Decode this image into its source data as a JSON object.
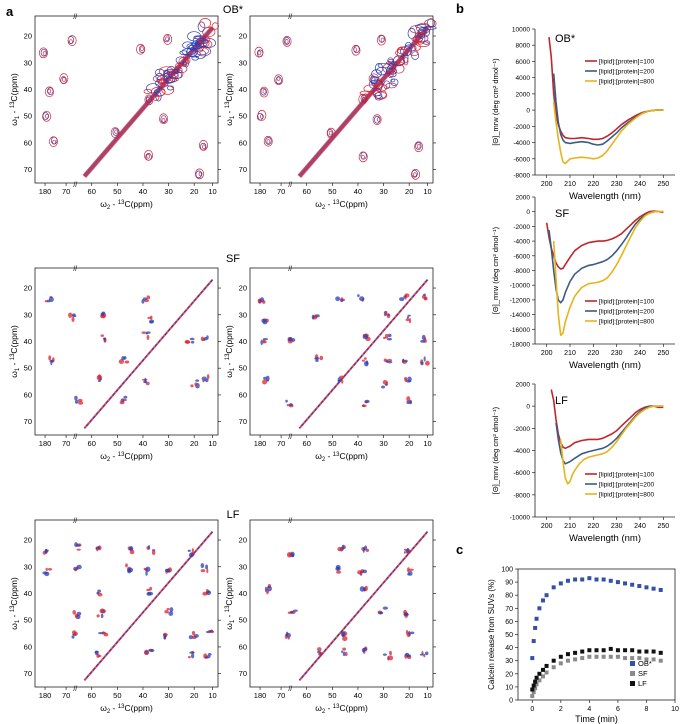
{
  "panel_labels": {
    "a": "a",
    "b": "b",
    "c": "c"
  },
  "nmr": {
    "x_label_main": "ω",
    "x_label_sub": "2",
    "x_label_tail": " - ",
    "x_label_sup": "13",
    "x_label_end": "C(ppm)",
    "y_label_main": "ω",
    "y_label_sub": "1",
    "y_label_tail": " - ",
    "y_label_sup": "13",
    "y_label_end": "C(ppm)",
    "x_ticks": [
      "180",
      "70",
      "60",
      "50",
      "40",
      "30",
      "20",
      "10"
    ],
    "y_ticks": [
      "20",
      "30",
      "40",
      "50",
      "60",
      "70"
    ],
    "break_mark": "//",
    "colors": {
      "red": "#e0202a",
      "blue": "#2a3fb5",
      "purple": "#7a4fb8"
    },
    "rows": [
      {
        "label": "OB*"
      },
      {
        "label": "SF"
      },
      {
        "label": "LF"
      }
    ]
  },
  "chart_data": [
    {
      "type": "line",
      "panel": "b-OB*",
      "title": "OB*",
      "xlabel": "Wavelength (nm)",
      "ylabel": "[Θ]_mrw (deg cm² dmol⁻¹)",
      "xlim": [
        195,
        255
      ],
      "ylim": [
        -8000,
        10000
      ],
      "x_ticks": [
        200,
        210,
        220,
        230,
        240,
        250
      ],
      "y_ticks": [
        -8000,
        -6000,
        -4000,
        -2000,
        0,
        2000,
        4000,
        6000,
        8000,
        10000
      ],
      "legend_position": "top-right",
      "series": [
        {
          "name": "[lipid]:[protein]=100",
          "color": "#c0262c",
          "x": [
            201,
            202,
            203,
            204,
            205,
            206,
            207,
            208,
            210,
            212,
            215,
            218,
            220,
            222,
            224,
            226,
            228,
            230,
            232,
            235,
            238,
            241,
            244,
            247,
            250
          ],
          "y": [
            9000,
            6500,
            2000,
            -500,
            -1800,
            -2600,
            -3100,
            -3400,
            -3500,
            -3500,
            -3400,
            -3500,
            -3600,
            -3600,
            -3500,
            -3200,
            -2800,
            -2300,
            -1800,
            -1200,
            -700,
            -300,
            -100,
            0,
            0
          ]
        },
        {
          "name": "[lipid]:[protein]=200",
          "color": "#3b5b86",
          "x": [
            203,
            204,
            205,
            206,
            207,
            208,
            210,
            212,
            215,
            218,
            220,
            222,
            224,
            226,
            228,
            230,
            232,
            235,
            238,
            241,
            244,
            247,
            250
          ],
          "y": [
            4500,
            1000,
            -1500,
            -3000,
            -3700,
            -4000,
            -4100,
            -4000,
            -3900,
            -4000,
            -4200,
            -4300,
            -4200,
            -3800,
            -3300,
            -2800,
            -2200,
            -1500,
            -900,
            -400,
            -100,
            0,
            0
          ]
        },
        {
          "name": "[lipid]:[protein]=800",
          "color": "#e8b319",
          "x": [
            203,
            204,
            205,
            206,
            207,
            208,
            209,
            210,
            212,
            215,
            218,
            220,
            222,
            224,
            226,
            228,
            230,
            232,
            235,
            238,
            241,
            244,
            247,
            250
          ],
          "y": [
            1000,
            -1500,
            -3500,
            -5200,
            -6400,
            -6600,
            -6300,
            -6000,
            -5900,
            -5800,
            -5900,
            -6000,
            -5900,
            -5600,
            -5000,
            -4200,
            -3400,
            -2600,
            -1700,
            -1000,
            -400,
            -100,
            0,
            0
          ]
        }
      ]
    },
    {
      "type": "line",
      "panel": "b-SF",
      "title": "SF",
      "xlabel": "Wavelength (nm)",
      "ylabel": "[Θ]_mrw (deg cm² dmol⁻¹)",
      "xlim": [
        195,
        255
      ],
      "ylim": [
        -18000,
        2000
      ],
      "x_ticks": [
        200,
        210,
        220,
        230,
        240,
        250
      ],
      "y_ticks": [
        -18000,
        -16000,
        -14000,
        -12000,
        -10000,
        -8000,
        -6000,
        -4000,
        -2000,
        0,
        2000
      ],
      "legend_position": "bottom-right",
      "series": [
        {
          "name": "[lipid]:[protein]=100",
          "color": "#c0262c",
          "x": [
            200,
            201,
            202,
            203,
            204,
            205,
            206,
            207,
            208,
            210,
            212,
            215,
            218,
            220,
            222,
            224,
            226,
            228,
            230,
            232,
            234,
            236,
            238,
            240,
            242,
            244,
            246,
            248,
            250
          ],
          "y": [
            -1500,
            -3500,
            -5000,
            -6000,
            -7000,
            -7500,
            -7800,
            -7700,
            -7200,
            -6200,
            -5300,
            -4600,
            -4200,
            -4100,
            -4000,
            -4000,
            -3900,
            -3700,
            -3400,
            -3000,
            -2400,
            -1800,
            -1200,
            -700,
            -300,
            0,
            100,
            0,
            -100
          ]
        },
        {
          "name": "[lipid]:[protein]=200",
          "color": "#3b5b86",
          "x": [
            201,
            202,
            203,
            204,
            205,
            206,
            207,
            208,
            210,
            212,
            215,
            218,
            220,
            222,
            224,
            226,
            228,
            230,
            232,
            234,
            236,
            238,
            240,
            242,
            244,
            246,
            248,
            250
          ],
          "y": [
            -2500,
            -5000,
            -8000,
            -10500,
            -12000,
            -12400,
            -12000,
            -11000,
            -9500,
            -8500,
            -7700,
            -7300,
            -7200,
            -7000,
            -6800,
            -6500,
            -6000,
            -5300,
            -4500,
            -3600,
            -2600,
            -1700,
            -1000,
            -500,
            -200,
            0,
            0,
            0
          ]
        },
        {
          "name": "[lipid]:[protein]=800",
          "color": "#e8b319",
          "x": [
            203,
            204,
            205,
            206,
            207,
            208,
            210,
            212,
            215,
            218,
            220,
            222,
            224,
            226,
            228,
            230,
            232,
            234,
            236,
            238,
            240,
            242,
            244,
            246,
            248,
            250
          ],
          "y": [
            -4000,
            -9000,
            -14000,
            -16800,
            -16500,
            -15000,
            -13000,
            -11500,
            -10300,
            -9800,
            -9700,
            -9600,
            -9400,
            -9000,
            -8200,
            -7200,
            -6000,
            -4700,
            -3400,
            -2200,
            -1300,
            -600,
            -200,
            0,
            0,
            0
          ]
        }
      ]
    },
    {
      "type": "line",
      "panel": "b-LF",
      "title": "LF",
      "xlabel": "Wavelength (nm)",
      "ylabel": "[Θ]_mrw (deg cm² dmol⁻¹)",
      "xlim": [
        195,
        255
      ],
      "ylim": [
        -10000,
        2000
      ],
      "x_ticks": [
        200,
        210,
        220,
        230,
        240,
        250
      ],
      "y_ticks": [
        -10000,
        -8000,
        -6000,
        -4000,
        -2000,
        0,
        2000
      ],
      "legend_position": "bottom-right",
      "series": [
        {
          "name": "[lipid]:[protein]=100",
          "color": "#c0262c",
          "x": [
            202,
            203,
            204,
            205,
            206,
            207,
            208,
            210,
            212,
            215,
            218,
            220,
            222,
            224,
            226,
            228,
            230,
            232,
            234,
            236,
            238,
            240,
            242,
            244,
            246,
            248,
            250
          ],
          "y": [
            1500,
            500,
            -1200,
            -2500,
            -3300,
            -3700,
            -3800,
            -3600,
            -3300,
            -3100,
            -3000,
            -3000,
            -3000,
            -2900,
            -2700,
            -2500,
            -2200,
            -1800,
            -1400,
            -1000,
            -600,
            -300,
            -100,
            0,
            0,
            -100,
            -100
          ]
        },
        {
          "name": "[lipid]:[protein]=200",
          "color": "#3b5b86",
          "x": [
            204,
            205,
            206,
            207,
            208,
            210,
            212,
            215,
            218,
            220,
            222,
            224,
            226,
            228,
            230,
            232,
            234,
            236,
            238,
            240,
            242,
            244,
            246,
            248,
            250
          ],
          "y": [
            -1500,
            -3000,
            -4200,
            -4900,
            -5200,
            -5000,
            -4700,
            -4300,
            -4100,
            -4000,
            -3900,
            -3800,
            -3600,
            -3300,
            -2900,
            -2400,
            -1900,
            -1400,
            -900,
            -500,
            -200,
            0,
            0,
            0,
            0
          ]
        },
        {
          "name": "[lipid]:[protein]=800",
          "color": "#e8b319",
          "x": [
            206,
            207,
            208,
            209,
            210,
            211,
            212,
            214,
            216,
            218,
            220,
            222,
            224,
            226,
            228,
            230,
            232,
            234,
            236,
            238,
            240,
            242,
            244,
            246,
            248,
            250
          ],
          "y": [
            -3000,
            -5000,
            -6500,
            -7000,
            -6800,
            -6200,
            -5800,
            -5200,
            -4800,
            -4600,
            -4500,
            -4400,
            -4300,
            -4100,
            -3700,
            -3200,
            -2600,
            -2000,
            -1500,
            -1000,
            -600,
            -300,
            -100,
            0,
            0,
            0
          ]
        }
      ]
    },
    {
      "type": "scatter",
      "panel": "c",
      "title": "",
      "xlabel": "Time (min)",
      "ylabel": "Calcein release from SUVs (%)",
      "xlim": [
        -1,
        10
      ],
      "ylim": [
        0,
        100
      ],
      "x_ticks": [
        0,
        2,
        4,
        6,
        8,
        10
      ],
      "y_ticks": [
        0,
        10,
        20,
        30,
        40,
        50,
        60,
        70,
        80,
        90,
        100
      ],
      "legend_position": "bottom-right",
      "series": [
        {
          "name": "OB*",
          "color": "#3350a8",
          "marker": "square",
          "x": [
            0,
            0.1,
            0.2,
            0.3,
            0.5,
            0.75,
            1,
            1.5,
            2,
            2.5,
            3,
            3.5,
            4,
            4.5,
            5,
            5.5,
            6,
            6.5,
            7,
            7.5,
            8,
            8.5,
            9
          ],
          "y": [
            32,
            45,
            55,
            62,
            70,
            76,
            80,
            86,
            89,
            91,
            92,
            92,
            93,
            92,
            92,
            91,
            90,
            89,
            88,
            87,
            86,
            85,
            84
          ]
        },
        {
          "name": "SF",
          "color": "#8a8a8a",
          "marker": "square",
          "x": [
            0,
            0.1,
            0.2,
            0.3,
            0.5,
            0.75,
            1,
            1.5,
            2,
            2.5,
            3,
            3.5,
            4,
            4.5,
            5,
            5.5,
            6,
            6.5,
            7,
            7.5,
            8,
            8.5,
            9
          ],
          "y": [
            3,
            6,
            9,
            12,
            15,
            18,
            21,
            25,
            28,
            30,
            31,
            32,
            33,
            33,
            33,
            33,
            33,
            32,
            32,
            32,
            31,
            31,
            30
          ]
        },
        {
          "name": "LF",
          "color": "#111111",
          "marker": "square",
          "x": [
            0,
            0.1,
            0.2,
            0.3,
            0.5,
            0.75,
            1,
            1.5,
            2,
            2.5,
            3,
            3.5,
            4,
            4.5,
            5,
            5.5,
            6,
            6.5,
            7,
            7.5,
            8,
            8.5,
            9
          ],
          "y": [
            8,
            11,
            14,
            17,
            20,
            23,
            26,
            30,
            33,
            35,
            36,
            37,
            38,
            38,
            38,
            39,
            38,
            38,
            38,
            37,
            37,
            37,
            36
          ]
        }
      ]
    }
  ]
}
